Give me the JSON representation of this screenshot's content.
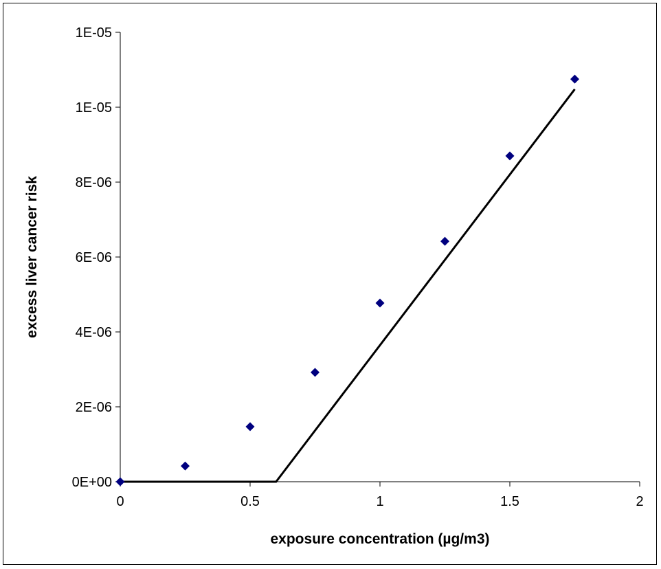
{
  "chart_data": {
    "type": "scatter",
    "title": "",
    "xlabel": "exposure concentration (µg/m3)",
    "ylabel": "excess liver cancer risk",
    "xlim": [
      0,
      2
    ],
    "ylim": [
      0,
      1.2e-05
    ],
    "x_ticks": [
      0,
      0.5,
      1,
      1.5,
      2
    ],
    "x_tick_labels": [
      "0",
      "0.5",
      "1",
      "1.5",
      "2"
    ],
    "y_ticks": [
      0,
      2e-06,
      4e-06,
      6e-06,
      8e-06,
      1e-05,
      1.2e-05
    ],
    "y_tick_labels": [
      "0E+00",
      "2E-06",
      "4E-06",
      "6E-06",
      "8E-06",
      "1E-05",
      "1E-05"
    ],
    "grid": false,
    "legend": "none",
    "series": [
      {
        "type": "scatter",
        "marker": "diamond",
        "color": "#00007f",
        "x": [
          0,
          0.25,
          0.5,
          0.75,
          1,
          1.25,
          1.5,
          1.75
        ],
        "y": [
          0,
          4.2e-07,
          1.47e-06,
          2.92e-06,
          4.77e-06,
          6.42e-06,
          8.7e-06,
          1.075e-05
        ]
      },
      {
        "type": "line",
        "color": "#000000",
        "x": [
          0,
          0.6,
          1.75
        ],
        "y": [
          0,
          0,
          1.048e-05
        ]
      }
    ]
  }
}
